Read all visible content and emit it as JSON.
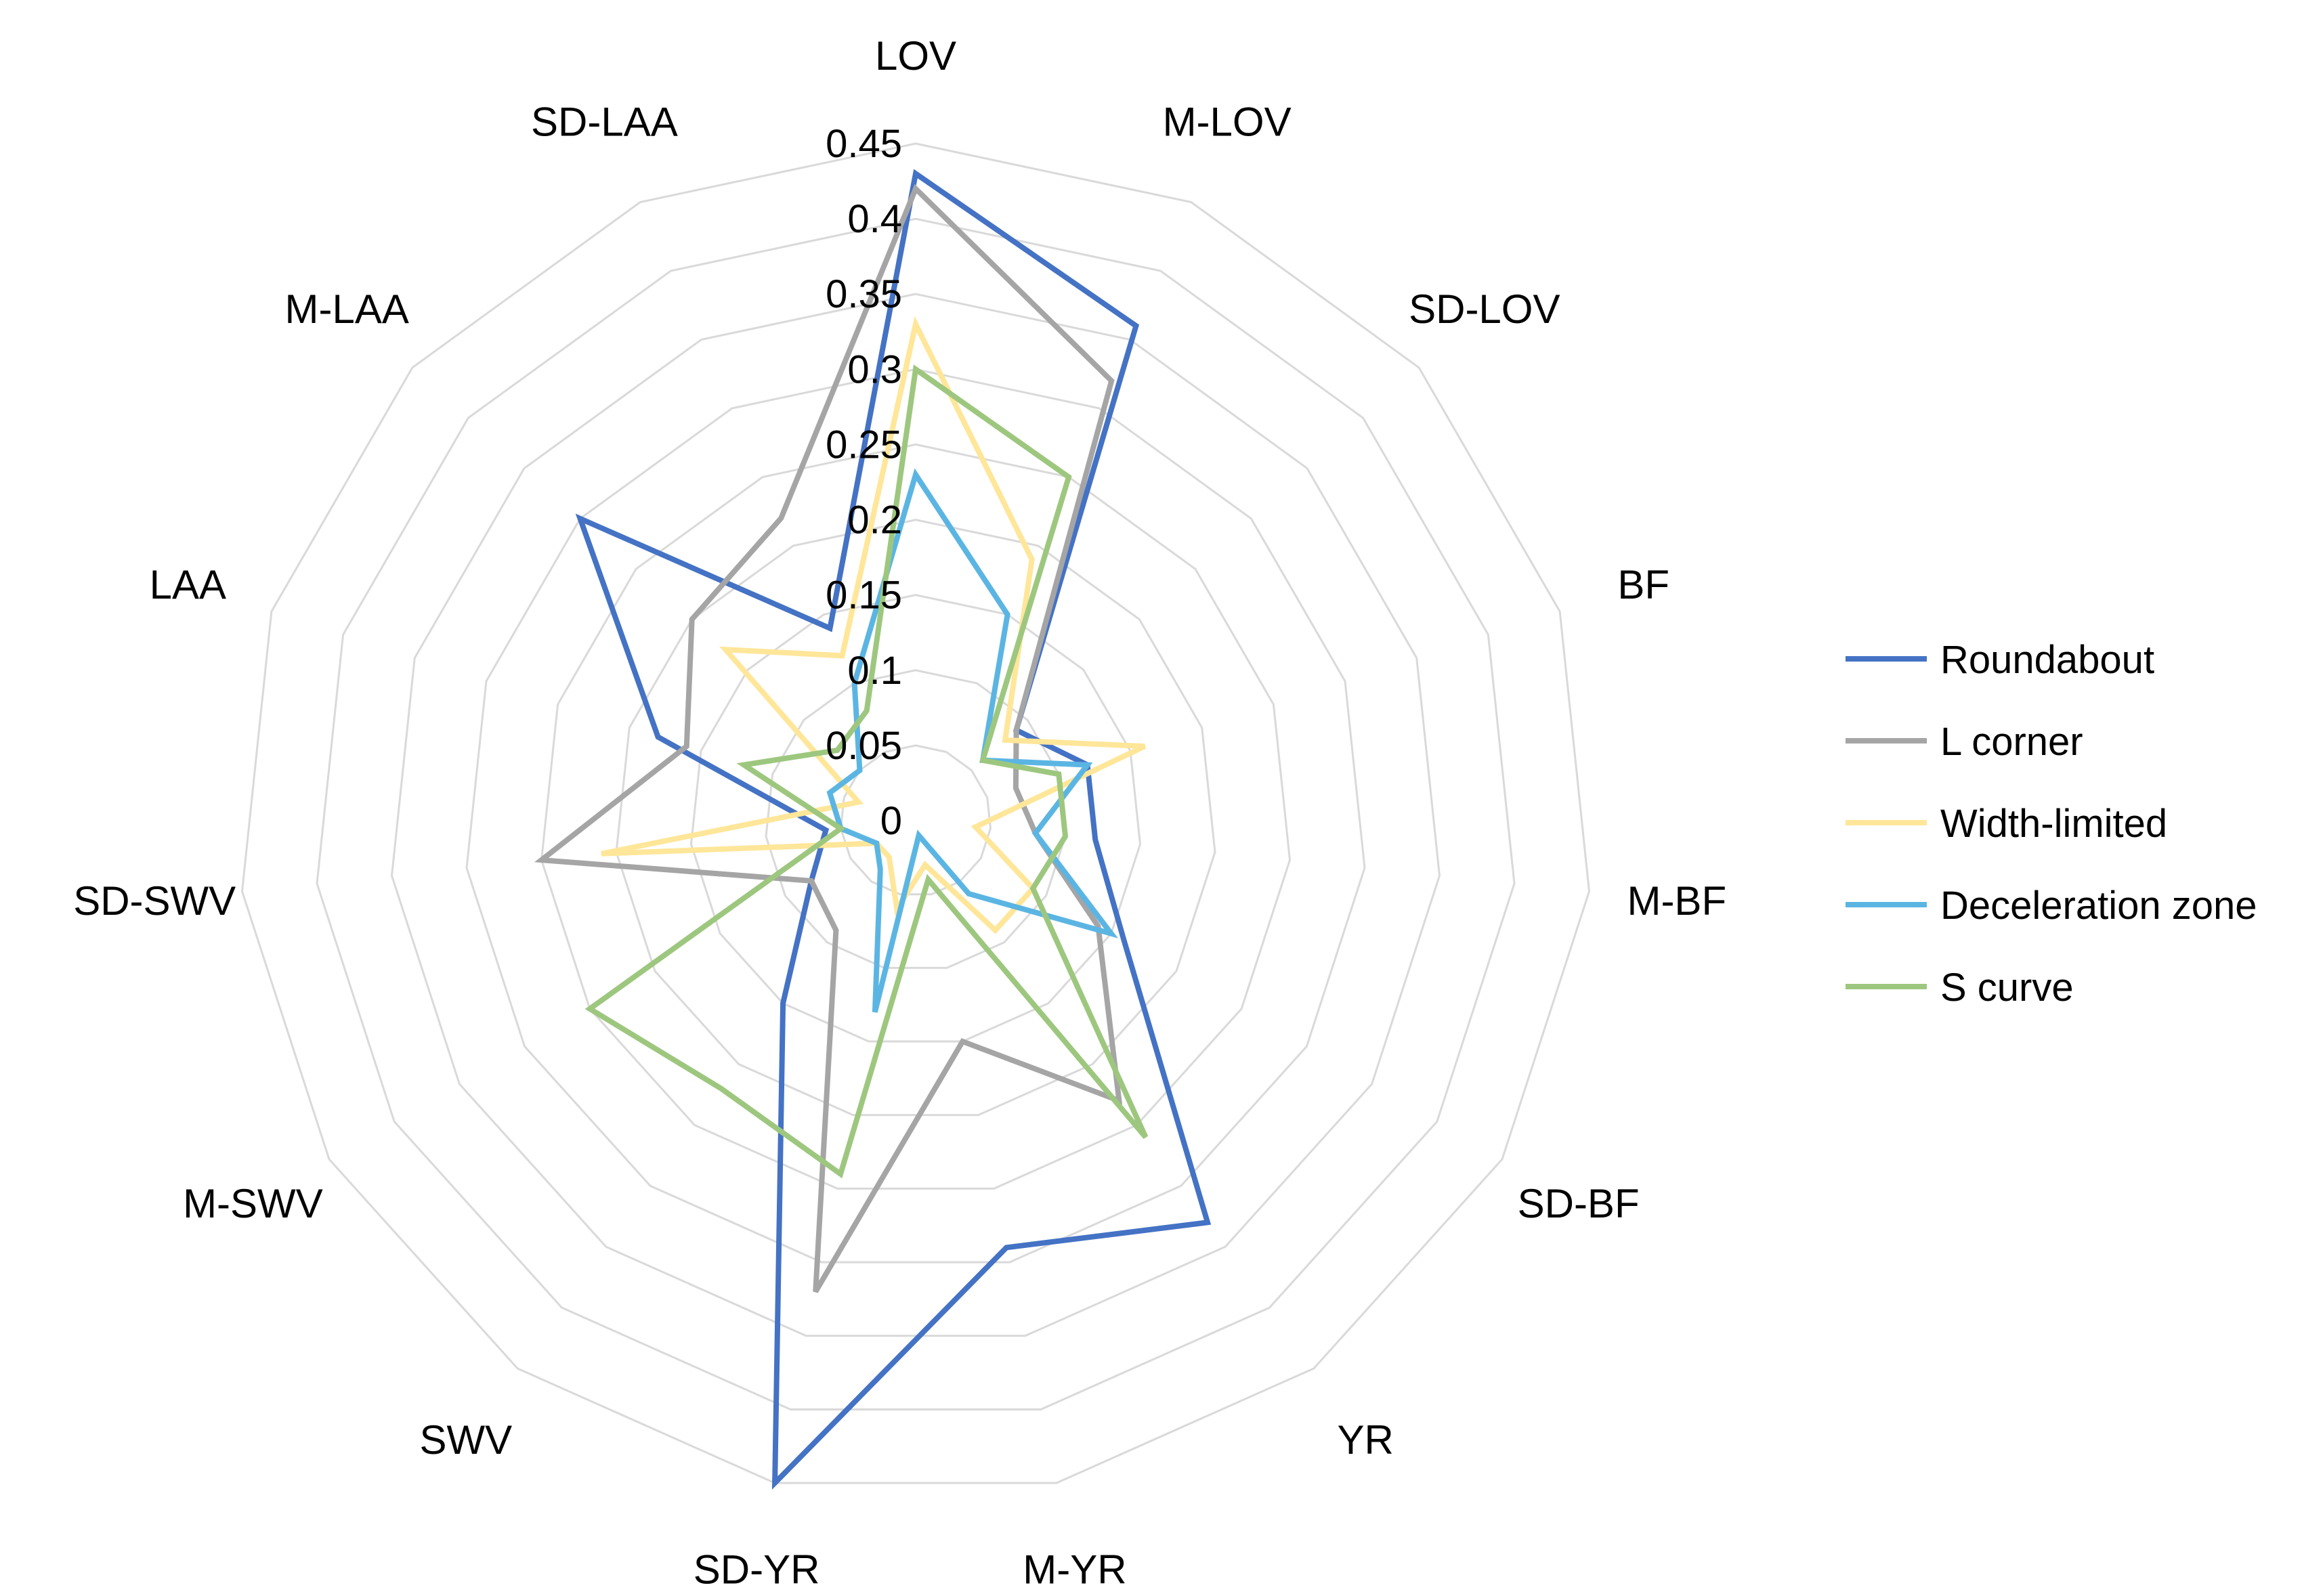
{
  "chart_data": {
    "type": "radar",
    "title": "",
    "categories": [
      "LOV",
      "M-LOV",
      "SD-LOV",
      "BF",
      "M-BF",
      "SD-BF",
      "YR",
      "M-YR",
      "SD-YR",
      "SWV",
      "M-SWV",
      "SD-SWV",
      "LAA",
      "M-LAA",
      "SD-LAA"
    ],
    "rlim": [
      0,
      0.45
    ],
    "ticks": [
      "0",
      "0.05",
      "0.1",
      "0.15",
      "0.2",
      "0.25",
      "0.3",
      "0.35",
      "0.4",
      "0.45"
    ],
    "tick_values": [
      0,
      0.05,
      0.1,
      0.15,
      0.2,
      0.25,
      0.3,
      0.35,
      0.4,
      0.45
    ],
    "grid": true,
    "legend_position": "right",
    "series": [
      {
        "name": "Roundabout",
        "color": "#4472C4",
        "values": [
          0.43,
          0.36,
          0.09,
          0.12,
          0.12,
          0.16,
          0.33,
          0.29,
          0.45,
          0.15,
          0.08,
          0.06,
          0.18,
          0.3,
          0.14
        ]
      },
      {
        "name": "L corner",
        "color": "#A5A5A5",
        "values": [
          0.42,
          0.32,
          0.09,
          0.07,
          0.08,
          0.14,
          0.23,
          0.15,
          0.32,
          0.09,
          0.08,
          0.25,
          0.16,
          0.2,
          0.22
        ]
      },
      {
        "name": "Width-limited",
        "color": "#FFE699",
        "values": [
          0.33,
          0.19,
          0.08,
          0.16,
          0.04,
          0.09,
          0.09,
          0.03,
          0.06,
          0.03,
          0.03,
          0.21,
          0.04,
          0.17,
          0.12
        ]
      },
      {
        "name": "Deceleration zone",
        "color": "#5BB5E3",
        "values": [
          0.23,
          0.15,
          0.06,
          0.12,
          0.08,
          0.15,
          0.06,
          0.01,
          0.13,
          0.04,
          0.03,
          0.05,
          0.06,
          0.05,
          0.1
        ]
      },
      {
        "name": "S curve",
        "color": "#9DC77E",
        "values": [
          0.3,
          0.25,
          0.06,
          0.1,
          0.1,
          0.09,
          0.26,
          0.04,
          0.24,
          0.22,
          0.25,
          0.05,
          0.12,
          0.07,
          0.08
        ]
      }
    ]
  }
}
